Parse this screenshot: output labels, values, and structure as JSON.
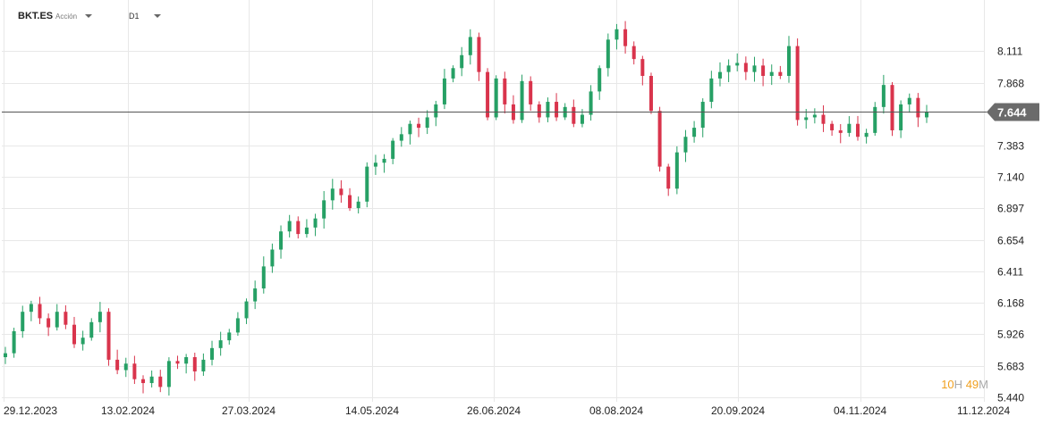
{
  "header": {
    "symbol": "BKT.ES",
    "instrument_type": "Acción",
    "timeframe": "D1"
  },
  "current_price_label": "7.644",
  "timer": {
    "hours": "10",
    "hours_unit": "H",
    "minutes": "49",
    "minutes_unit": "M"
  },
  "colors": {
    "up": "#26a065",
    "down": "#d9344c",
    "grid": "#e8e8e8",
    "price_line": "#555555",
    "price_tag": "#6b6b6b"
  },
  "chart_data": {
    "type": "candlestick",
    "ylim": [
      5.44,
      8.354
    ],
    "grid": true,
    "y_ticks": [
      "8.111",
      "7.868",
      "7.644",
      "7.383",
      "7.140",
      "6.897",
      "6.654",
      "6.411",
      "6.168",
      "5.926",
      "5.683",
      "5.440"
    ],
    "x_ticks": [
      "29.12.2023",
      "13.02.2024",
      "27.03.2024",
      "14.05.2024",
      "26.06.2024",
      "08.08.2024",
      "20.09.2024",
      "04.11.2024",
      "11.12.2024"
    ],
    "current_price": 7.644,
    "approximate_close_path": [
      5.78,
      5.95,
      6.1,
      6.16,
      6.05,
      5.98,
      6.1,
      6.0,
      5.85,
      5.9,
      6.02,
      6.1,
      5.73,
      5.65,
      5.7,
      5.58,
      5.55,
      5.6,
      5.52,
      5.72,
      5.7,
      5.75,
      5.64,
      5.73,
      5.82,
      5.88,
      5.94,
      6.05,
      6.18,
      6.28,
      6.45,
      6.58,
      6.72,
      6.8,
      6.7,
      6.75,
      6.82,
      6.96,
      7.05,
      7.0,
      6.9,
      6.95,
      7.22,
      7.25,
      7.28,
      7.42,
      7.47,
      7.55,
      7.52,
      7.6,
      7.7,
      7.9,
      7.98,
      8.08,
      8.22,
      7.95,
      7.6,
      7.9,
      7.7,
      7.58,
      7.88,
      7.7,
      7.6,
      7.72,
      7.6,
      7.68,
      7.55,
      7.62,
      7.8,
      7.98,
      8.2,
      8.28,
      8.15,
      8.05,
      7.92,
      7.65,
      7.22,
      7.05,
      7.33,
      7.45,
      7.52,
      7.72,
      7.9,
      7.95,
      8.0,
      8.02,
      7.95,
      8.0,
      7.92,
      7.95,
      7.92,
      8.15,
      7.58,
      7.6,
      7.62,
      7.55,
      7.5,
      7.48,
      7.55,
      7.45,
      7.48,
      7.68,
      7.85,
      7.5,
      7.7,
      7.75,
      7.6,
      7.64
    ]
  }
}
